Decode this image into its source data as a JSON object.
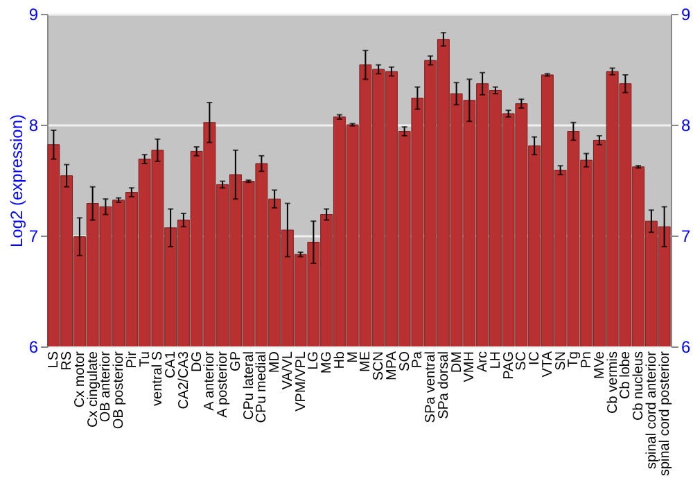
{
  "chart_data": {
    "type": "bar",
    "ylabel": "Log2 (expression)",
    "categories": [
      "LS",
      "RS",
      "Cx motor",
      "Cx cingulate",
      "OB anterior",
      "OB posterior",
      "Pir",
      "Tu",
      "ventral S",
      "CA1",
      "CA2/CA3",
      "DG",
      "A anterior",
      "A posterior",
      "GP",
      "CPu lateral",
      "CPu medial",
      "MD",
      "VA/VL",
      "VPM/VPL",
      "LG",
      "MG",
      "Hb",
      "M",
      "ME",
      "SCN",
      "MPA",
      "SO",
      "Pa",
      "SPa ventral",
      "SPa dorsal",
      "DM",
      "VMH",
      "Arc",
      "LH",
      "PAG",
      "SC",
      "IC",
      "VTA",
      "SN",
      "Tg",
      "Pn",
      "MVe",
      "Cb vermis",
      "Cb lobe",
      "Cb nucleus",
      "spinal cord anterior",
      "spinal cord posterior"
    ],
    "series": [
      {
        "color": "#b83030",
        "values": [
          7.82,
          7.54,
          6.99,
          7.29,
          7.26,
          7.32,
          7.39,
          7.69,
          7.77,
          7.07,
          7.14,
          7.76,
          8.02,
          7.46,
          7.55,
          7.49,
          7.65,
          7.33,
          7.05,
          6.83,
          6.94,
          7.19,
          8.07,
          8.0,
          8.54,
          8.5,
          8.48,
          7.94,
          8.24,
          8.58,
          8.77,
          8.28,
          8.22,
          8.37,
          8.31,
          8.1,
          8.19,
          7.81,
          8.45,
          7.59,
          7.94,
          7.68,
          7.86,
          8.48,
          8.37,
          7.62,
          7.13,
          7.08
        ],
        "errors": [
          0.13,
          0.1,
          0.17,
          0.15,
          0.07,
          0.02,
          0.04,
          0.04,
          0.1,
          0.17,
          0.06,
          0.04,
          0.18,
          0.03,
          0.22,
          0.01,
          0.07,
          0.08,
          0.24,
          0.02,
          0.19,
          0.05,
          0.02,
          0.01,
          0.13,
          0.04,
          0.04,
          0.04,
          0.1,
          0.04,
          0.06,
          0.1,
          0.19,
          0.1,
          0.03,
          0.03,
          0.04,
          0.08,
          0.01,
          0.04,
          0.08,
          0.06,
          0.04,
          0.03,
          0.08,
          0.01,
          0.1,
          0.18
        ]
      }
    ],
    "ylim": [
      6,
      9
    ],
    "yticks": [
      6,
      7,
      8,
      9
    ],
    "y2lim": [
      6,
      9
    ],
    "y2ticks": [
      6,
      7,
      8,
      9
    ],
    "grid": "y"
  }
}
